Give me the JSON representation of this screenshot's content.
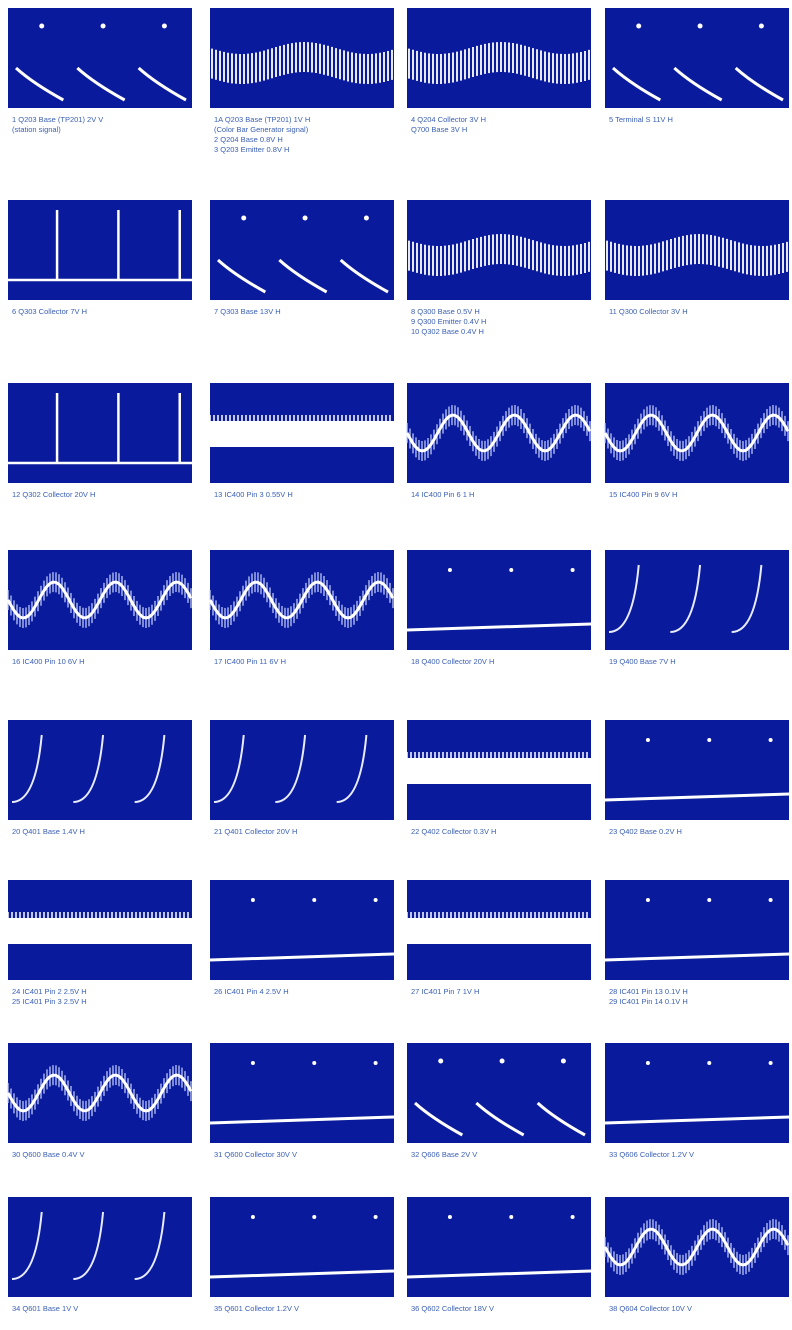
{
  "panels": [
    {
      "caption": [
        "1  Q203 Base (TP201)  2V  V",
        "(station signal)"
      ]
    },
    {
      "caption": [
        "1A  Q203 Base (TP201)  1V  H",
        "(Color Bar Generator signal)",
        "2  Q204 Base 0.8V  H",
        "3  Q203 Emitter 0.8V  H"
      ]
    },
    {
      "caption": [
        "4  Q204 Collector 3V  H",
        "Q700 Base 3V  H"
      ]
    },
    {
      "caption": [
        "5  Terminal S  11V  H"
      ]
    },
    {
      "caption": [
        "6  Q303 Collector  7V  H"
      ]
    },
    {
      "caption": [
        "7  Q303 Base 13V  H"
      ]
    },
    {
      "caption": [
        "8  Q300 Base 0.5V  H",
        "9  Q300 Emitter 0.4V  H",
        "10  Q302 Base 0.4V  H"
      ]
    },
    {
      "caption": [
        "11  Q300 Collector 3V  H"
      ]
    },
    {
      "caption": [
        "12  Q302 Collector 20V  H"
      ]
    },
    {
      "caption": [
        "13  IC400 Pin 3  0.55V  H"
      ]
    },
    {
      "caption": [
        "14  IC400 Pin 6  1  H"
      ]
    },
    {
      "caption": [
        "15  IC400 Pin 9  6V  H"
      ]
    },
    {
      "caption": [
        "16  IC400 Pin 10  6V  H"
      ]
    },
    {
      "caption": [
        "17  IC400 Pin 11  6V  H"
      ]
    },
    {
      "caption": [
        "18  Q400 Collector 20V  H"
      ]
    },
    {
      "caption": [
        "19  Q400 Base 7V  H"
      ]
    },
    {
      "caption": [
        "20  Q401 Base 1.4V  H"
      ]
    },
    {
      "caption": [
        "21  Q401 Collector 20V  H"
      ]
    },
    {
      "caption": [
        "22  Q402 Collector 0.3V  H"
      ]
    },
    {
      "caption": [
        "23  Q402 Base 0.2V  H"
      ]
    },
    {
      "caption": [
        "24  IC401 Pin 2  2.5V  H",
        "25  IC401 Pin 3  2.5V  H"
      ]
    },
    {
      "caption": [
        "26  IC401 Pin 4  2.5V  H"
      ]
    },
    {
      "caption": [
        "27  IC401 Pin 7  1V  H"
      ]
    },
    {
      "caption": [
        "28  IC401 Pin 13  0.1V  H",
        "29  IC401 Pin 14  0.1V  H"
      ]
    },
    {
      "caption": [
        "30  Q600 Base 0.4V  V"
      ]
    },
    {
      "caption": [
        "31  Q600 Collector 30V  V"
      ]
    },
    {
      "caption": [
        "32  Q606 Base 2V  V"
      ]
    },
    {
      "caption": [
        "33  Q606 Collector 1.2V  V"
      ]
    },
    {
      "caption": [
        "34  Q601 Base 1V  V"
      ]
    },
    {
      "caption": [
        "35  Q601 Collector 1.2V  V"
      ]
    },
    {
      "caption": [
        "36  Q602 Collector 18V  V"
      ]
    },
    {
      "caption": [
        "38  Q604 Collector 10V  V"
      ]
    }
  ]
}
